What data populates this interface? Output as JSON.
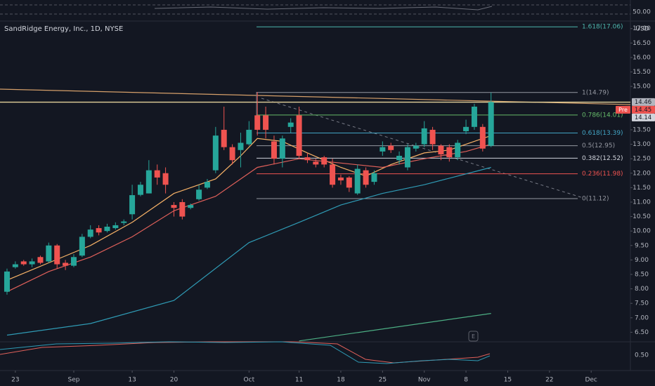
{
  "chart_data": {
    "type": "candlestick",
    "title": "SandRidge Energy, Inc., 1D, NYSE",
    "currency": "USD",
    "up_color": "#26a69a",
    "down_color": "#ef5350",
    "grid": false,
    "xlim": [
      -0.84,
      74.7
    ],
    "xticks": [
      {
        "value": 1,
        "label": "23"
      },
      {
        "value": 8,
        "label": "Sep"
      },
      {
        "value": 15,
        "label": "13"
      },
      {
        "value": 20,
        "label": "20"
      },
      {
        "value": 29,
        "label": "Oct"
      },
      {
        "value": 35,
        "label": "11"
      },
      {
        "value": 40,
        "label": "18"
      },
      {
        "value": 45,
        "label": "25"
      },
      {
        "value": 50,
        "label": "Nov"
      },
      {
        "value": 55,
        "label": "8"
      },
      {
        "value": 60,
        "label": "15"
      },
      {
        "value": 65,
        "label": "22"
      },
      {
        "value": 70,
        "label": "Dec"
      }
    ],
    "ylim": [
      6.17,
      17.26
    ],
    "yticks": [
      {
        "value": 6.5,
        "label": "6.50"
      },
      {
        "value": 7,
        "label": "7.00"
      },
      {
        "value": 7.5,
        "label": "7.50"
      },
      {
        "value": 8,
        "label": "8.00"
      },
      {
        "value": 8.5,
        "label": "8.50"
      },
      {
        "value": 9,
        "label": "9.00"
      },
      {
        "value": 9.5,
        "label": "9.50"
      },
      {
        "value": 10,
        "label": "10.00"
      },
      {
        "value": 10.5,
        "label": "10.50"
      },
      {
        "value": 11,
        "label": "11.00"
      },
      {
        "value": 11.5,
        "label": "11.50"
      },
      {
        "value": 12,
        "label": "12.00"
      },
      {
        "value": 12.5,
        "label": "12.50"
      },
      {
        "value": 13,
        "label": "13.00"
      },
      {
        "value": 13.5,
        "label": "13.50"
      },
      {
        "value": 15,
        "label": "15.00"
      },
      {
        "value": 15.5,
        "label": "15.50"
      },
      {
        "value": 16,
        "label": "16.00"
      },
      {
        "value": 16.5,
        "label": "16.50"
      },
      {
        "value": 17,
        "label": "17.00"
      }
    ],
    "ohlc": {
      "open": [
        7.9,
        8.75,
        8.95,
        8.85,
        9.1,
        8.95,
        9.5,
        8.9,
        8.8,
        9.15,
        9.8,
        10.1,
        10.0,
        10.1,
        10.28,
        10.58,
        11.25,
        11.3,
        12.1,
        12.0,
        10.9,
        11.0,
        10.8,
        11.1,
        11.5,
        12.1,
        13.5,
        12.9,
        12.8,
        13.0,
        14.0,
        14.0,
        13.1,
        12.5,
        13.6,
        14.0,
        12.55,
        12.4,
        12.55,
        12.3,
        11.85,
        11.85,
        11.3,
        12.1,
        11.7,
        12.75,
        12.95,
        12.45,
        12.2,
        12.85,
        13.0,
        13.5,
        12.95,
        12.9,
        12.55,
        13.45,
        13.6,
        13.6,
        12.95
      ],
      "high": [
        8.7,
        8.95,
        9.0,
        9.05,
        9.15,
        9.6,
        9.55,
        9.0,
        9.2,
        9.9,
        10.2,
        10.2,
        10.25,
        10.3,
        10.4,
        11.6,
        11.7,
        12.45,
        12.3,
        12.2,
        11.0,
        11.1,
        10.95,
        11.6,
        11.8,
        13.6,
        14.3,
        13.0,
        13.4,
        13.8,
        14.8,
        14.3,
        13.3,
        13.3,
        13.9,
        14.3,
        12.7,
        12.5,
        12.6,
        12.5,
        11.95,
        11.9,
        12.3,
        12.2,
        12.1,
        13.1,
        13.05,
        12.75,
        13.0,
        13.05,
        13.8,
        13.6,
        13.0,
        13.0,
        13.15,
        13.85,
        14.4,
        13.7,
        14.79
      ],
      "low": [
        7.8,
        8.7,
        8.8,
        8.75,
        8.85,
        8.9,
        8.7,
        8.65,
        8.75,
        9.1,
        9.75,
        9.85,
        9.95,
        10.05,
        10.2,
        10.4,
        11.2,
        11.3,
        11.6,
        11.3,
        10.5,
        10.4,
        10.75,
        11.05,
        11.45,
        12.0,
        12.8,
        12.3,
        12.2,
        12.95,
        13.3,
        13.2,
        12.3,
        12.2,
        13.4,
        12.5,
        12.35,
        12.2,
        12.2,
        11.5,
        11.6,
        11.35,
        11.25,
        11.5,
        11.6,
        12.6,
        12.7,
        12.3,
        12.1,
        12.75,
        12.9,
        12.8,
        12.45,
        12.4,
        12.45,
        13.35,
        13.5,
        12.75,
        12.9
      ],
      "close": [
        8.6,
        8.85,
        8.85,
        8.95,
        8.9,
        9.5,
        8.85,
        8.8,
        9.1,
        9.8,
        10.05,
        9.95,
        10.15,
        10.2,
        10.33,
        11.24,
        11.6,
        12.1,
        11.85,
        11.6,
        10.8,
        10.5,
        10.9,
        11.43,
        11.7,
        13.3,
        12.9,
        12.45,
        13.05,
        13.5,
        13.5,
        13.5,
        12.5,
        13.2,
        13.75,
        12.6,
        12.45,
        12.3,
        12.3,
        11.6,
        11.75,
        11.5,
        12.15,
        11.6,
        12.0,
        12.9,
        12.8,
        12.6,
        12.9,
        12.95,
        13.55,
        13.0,
        12.65,
        12.55,
        13.05,
        13.6,
        14.3,
        12.85,
        14.46
      ]
    },
    "lines": [
      {
        "color": "#f7b267",
        "x": [
          0,
          5,
          10,
          15,
          20,
          25,
          28,
          30,
          33,
          36,
          40,
          43,
          46,
          50,
          53,
          56,
          58
        ],
        "values": [
          8.3,
          8.9,
          9.5,
          10.3,
          11.3,
          11.8,
          12.6,
          13.2,
          13.1,
          12.7,
          12.2,
          11.9,
          12.3,
          12.7,
          12.8,
          13.1,
          13.3
        ]
      },
      {
        "color": "#e0605a",
        "x": [
          0,
          5,
          10,
          15,
          20,
          25,
          30,
          35,
          40,
          45,
          50,
          55,
          58
        ],
        "values": [
          7.9,
          8.6,
          9.1,
          9.8,
          10.7,
          11.2,
          12.2,
          12.5,
          12.35,
          12.2,
          12.5,
          12.75,
          13.0
        ]
      },
      {
        "color": "#2f9bb5",
        "x": [
          0,
          10,
          20,
          29,
          35,
          40,
          45,
          50,
          58
        ],
        "values": [
          6.4,
          6.8,
          7.6,
          9.6,
          10.3,
          10.9,
          11.3,
          11.6,
          12.2
        ]
      },
      {
        "color": "#4caf84",
        "x": [
          35,
          58
        ],
        "values": [
          6.2,
          7.15
        ]
      }
    ],
    "fib_levels": [
      {
        "value": 17.06,
        "label": "1.618(17.06)",
        "color": "#4db6ac"
      },
      {
        "value": 14.79,
        "label": "1(14.79)",
        "color": "#9598a1"
      },
      {
        "value": 14.01,
        "label": "0.786(14.01)",
        "color": "#66bb6a"
      },
      {
        "value": 13.39,
        "label": "0.618(13.39)",
        "color": "#42a5c5"
      },
      {
        "value": 12.95,
        "label": "0.5(12.95)",
        "color": "#9598a1"
      },
      {
        "value": 12.52,
        "label": "0.382(12.52)",
        "color": "#d1d4dc"
      },
      {
        "value": 11.98,
        "label": "0.236(11.98)",
        "color": "#ef5350"
      },
      {
        "value": 11.12,
        "label": "0(11.12)",
        "color": "#9598a1"
      }
    ],
    "price_labels": [
      {
        "value": 14.46,
        "label": "14.46",
        "color": "#b2b5be"
      },
      {
        "value": 14.45,
        "label": "14.45",
        "color": "#ef5350",
        "tag": "Pre"
      },
      {
        "value": 14.14,
        "label": "14.14",
        "color": "#d1d4dc"
      }
    ],
    "top_pane_tick": {
      "value": 50,
      "label": "50.00"
    },
    "bottom_pane_tick": {
      "value": 0.5,
      "label": "0.50"
    },
    "event_marker": "E"
  }
}
